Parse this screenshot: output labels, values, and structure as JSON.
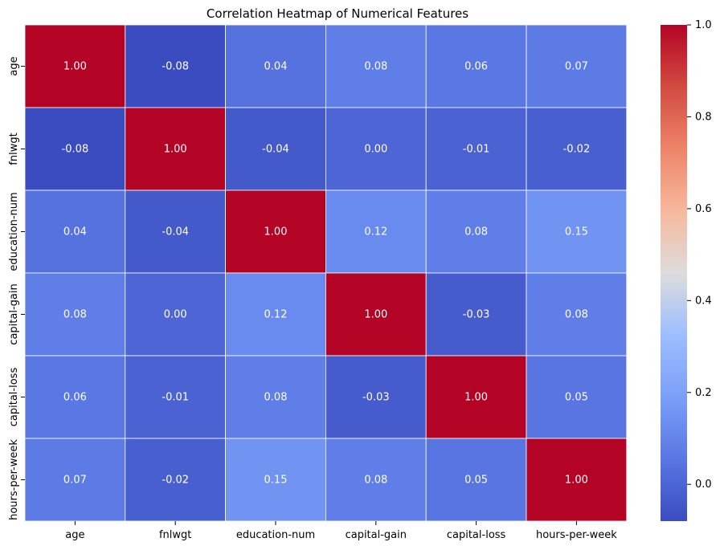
{
  "chart_data": {
    "type": "heatmap",
    "title": "Correlation Heatmap of Numerical Features",
    "xlabel": "",
    "ylabel": "",
    "labels": [
      "age",
      "fnlwgt",
      "education-num",
      "capital-gain",
      "capital-loss",
      "hours-per-week"
    ],
    "matrix": [
      [
        1.0,
        -0.08,
        0.04,
        0.08,
        0.06,
        0.07
      ],
      [
        -0.08,
        1.0,
        -0.04,
        0.0,
        -0.01,
        -0.02
      ],
      [
        0.04,
        -0.04,
        1.0,
        0.12,
        0.08,
        0.15
      ],
      [
        0.08,
        0.0,
        0.12,
        1.0,
        -0.03,
        0.08
      ],
      [
        0.06,
        -0.01,
        0.08,
        -0.03,
        1.0,
        0.05
      ],
      [
        0.07,
        -0.02,
        0.15,
        0.08,
        0.05,
        1.0
      ]
    ],
    "value_format": "0.00",
    "colormap": "coolwarm",
    "color_range": [
      -0.08,
      1.0
    ],
    "colorbar_ticks": [
      "1.0",
      "0.8",
      "0.6",
      "0.4",
      "0.2",
      "0.0"
    ],
    "cell_text_color": "#ffffff",
    "grid_line_color": "#ffffff"
  }
}
